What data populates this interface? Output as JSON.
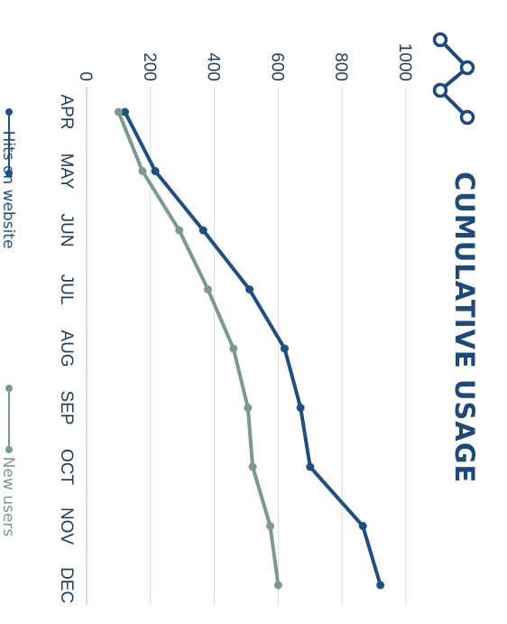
{
  "chart_data": {
    "type": "line",
    "title": "CUMULATIVE USAGE",
    "categories": [
      "APR",
      "MAY",
      "JUN",
      "JUL",
      "AUG",
      "SEP",
      "OCT",
      "NOV",
      "DEC"
    ],
    "y_ticks": [
      "0",
      "200",
      "400",
      "600",
      "800",
      "1000"
    ],
    "ylim": [
      0,
      1000
    ],
    "grid": true,
    "legend_position": "bottom",
    "orientation": "rotated 90° clockwise",
    "series": [
      {
        "name": "Hits on website",
        "color": "#1d4f85",
        "values": [
          120,
          215,
          365,
          510,
          620,
          670,
          700,
          865,
          920
        ]
      },
      {
        "name": "New users",
        "color": "#7a9a8e",
        "values": [
          100,
          175,
          290,
          380,
          460,
          505,
          520,
          575,
          600
        ]
      }
    ],
    "title_icon": "line-chart-icon"
  }
}
